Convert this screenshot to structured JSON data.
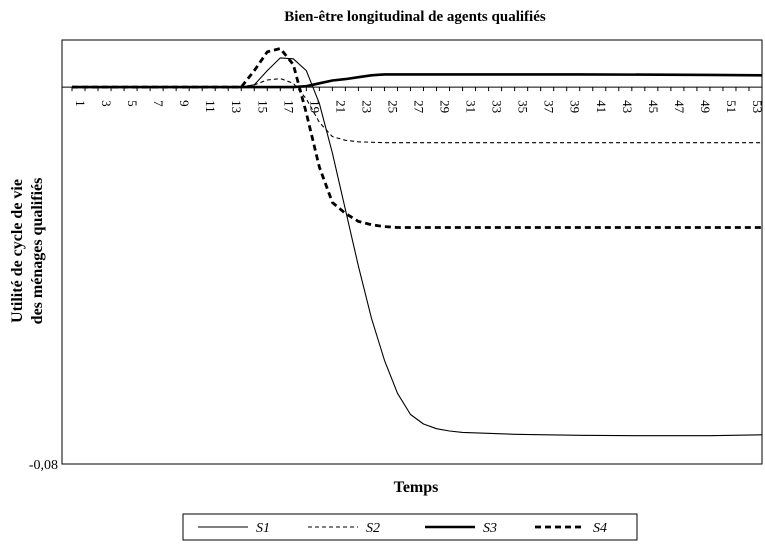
{
  "chart_data": {
    "type": "line",
    "title": "Bien-être longitudinal de agents qualifiés",
    "xlabel": "Temps",
    "ylabel_line1": "Utilité de cycle de vie",
    "ylabel_line2": "des ménages qualifiés",
    "ylim": [
      -0.08,
      0.01
    ],
    "y_tick_labels": [
      "-0,08"
    ],
    "xlim": [
      1,
      54
    ],
    "x_tick_labels": [
      "1",
      "3",
      "5",
      "7",
      "9",
      "11",
      "13",
      "15",
      "17",
      "19",
      "21",
      "23",
      "25",
      "27",
      "29",
      "31",
      "33",
      "35",
      "37",
      "39",
      "41",
      "43",
      "45",
      "47",
      "49",
      "51",
      "53"
    ],
    "grid": false,
    "legend_position": "bottom",
    "series": [
      {
        "name": "S1",
        "style": "thin-solid",
        "x": [
          1,
          14,
          15,
          16,
          17,
          18,
          19,
          20,
          21,
          22,
          23,
          24,
          25,
          26,
          27,
          28,
          29,
          30,
          31,
          35,
          40,
          45,
          50,
          54
        ],
        "y": [
          0,
          0,
          0.0005,
          0.0035,
          0.0062,
          0.006,
          0.0035,
          -0.0035,
          -0.014,
          -0.026,
          -0.038,
          -0.049,
          -0.058,
          -0.065,
          -0.0695,
          -0.0715,
          -0.0725,
          -0.073,
          -0.0733,
          -0.0737,
          -0.0739,
          -0.074,
          -0.074,
          -0.0738
        ]
      },
      {
        "name": "S2",
        "style": "thin-dashed",
        "x": [
          1,
          14,
          15,
          16,
          17,
          18,
          19,
          20,
          21,
          22,
          23,
          25,
          30,
          40,
          54
        ],
        "y": [
          0,
          0,
          0.0005,
          0.0015,
          0.0018,
          0.0008,
          -0.0025,
          -0.0075,
          -0.0105,
          -0.0113,
          -0.0116,
          -0.0118,
          -0.0118,
          -0.0118,
          -0.0118
        ]
      },
      {
        "name": "S3",
        "style": "thick-solid",
        "x": [
          1,
          18,
          19,
          20,
          21,
          22,
          23,
          24,
          25,
          30,
          40,
          50,
          54
        ],
        "y": [
          0,
          0,
          0.0002,
          0.0008,
          0.0014,
          0.0017,
          0.0021,
          0.0025,
          0.0027,
          0.0027,
          0.0027,
          0.0026,
          0.0025
        ]
      },
      {
        "name": "S4",
        "style": "thick-dashed",
        "x": [
          1,
          14,
          15,
          16,
          17,
          18,
          19,
          20,
          21,
          22,
          23,
          24,
          25,
          26,
          28,
          30,
          40,
          54
        ],
        "y": [
          0,
          0,
          0.0035,
          0.0075,
          0.0082,
          0.0048,
          -0.0055,
          -0.017,
          -0.0245,
          -0.0268,
          -0.0285,
          -0.0292,
          -0.0296,
          -0.0298,
          -0.0298,
          -0.0298,
          -0.0298,
          -0.0298
        ]
      }
    ]
  }
}
